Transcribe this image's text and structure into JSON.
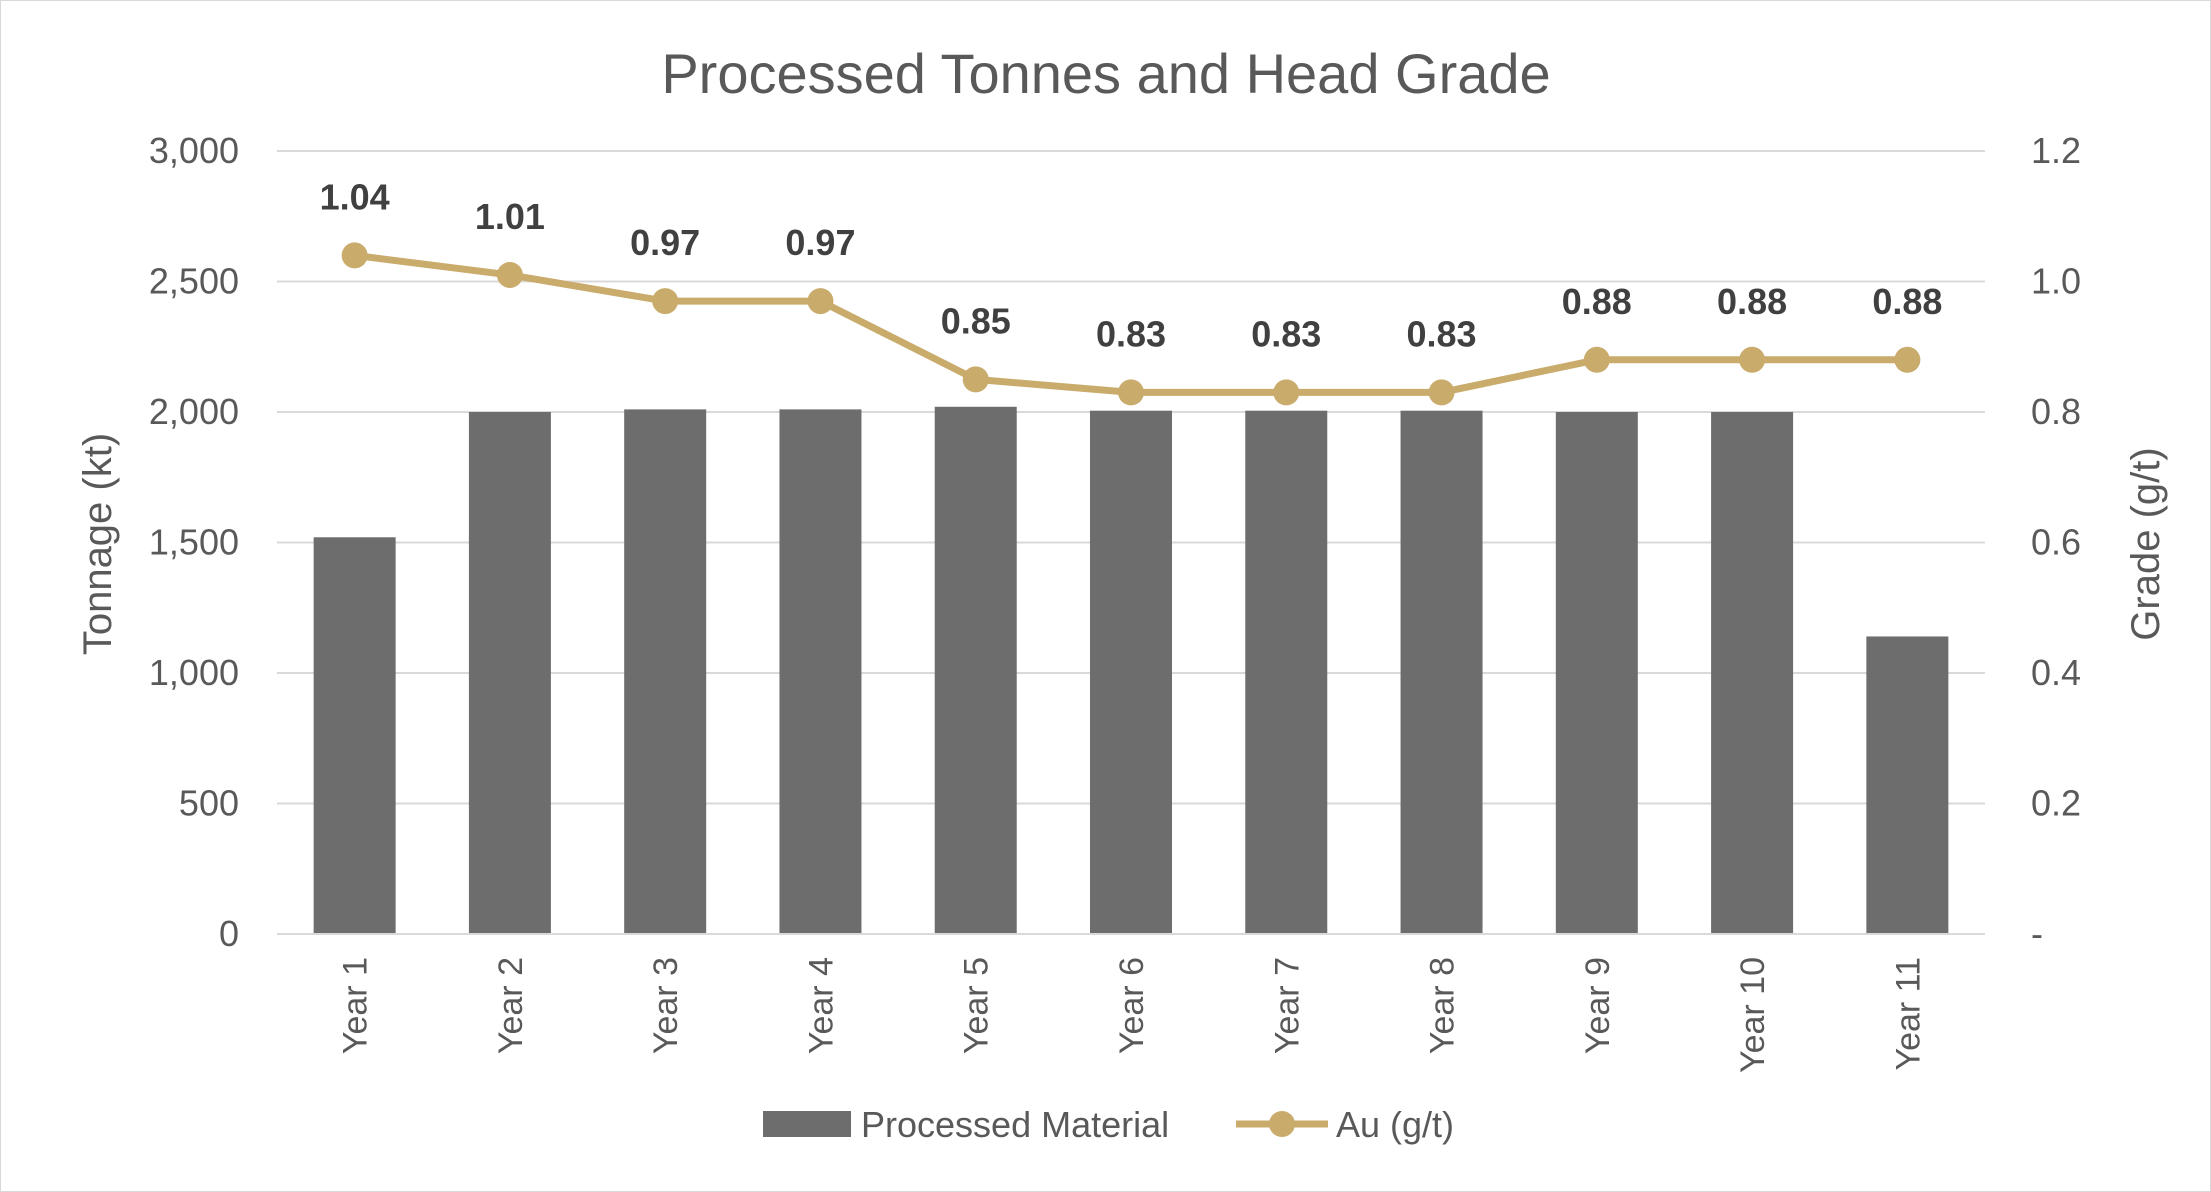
{
  "chart_data": {
    "type": "bar",
    "title": "Processed Tonnes and Head Grade",
    "categories": [
      "Year 1",
      "Year 2",
      "Year 3",
      "Year 4",
      "Year 5",
      "Year 6",
      "Year 7",
      "Year 8",
      "Year 9",
      "Year 10",
      "Year 11"
    ],
    "series": [
      {
        "name": "Processed Material",
        "type": "bar",
        "axis": "left",
        "color": "#6d6d6d",
        "values": [
          1520,
          2000,
          2010,
          2010,
          2020,
          2005,
          2005,
          2005,
          2000,
          2000,
          1140
        ]
      },
      {
        "name": "Au (g/t)",
        "type": "line",
        "axis": "right",
        "color": "#c9ab6b",
        "marker": "circle",
        "values": [
          1.04,
          1.01,
          0.97,
          0.97,
          0.85,
          0.83,
          0.83,
          0.83,
          0.88,
          0.88,
          0.88
        ],
        "data_labels": [
          "1.04",
          "1.01",
          "0.97",
          "0.97",
          "0.85",
          "0.83",
          "0.83",
          "0.83",
          "0.88",
          "0.88",
          "0.88"
        ]
      }
    ],
    "ylabel": "Tonnage (kt)",
    "y2label": "Grade (g/t)",
    "ylim": [
      0,
      3000
    ],
    "y2lim": [
      0,
      1.2
    ],
    "yticks": [
      "0",
      "500",
      "1,000",
      "1,500",
      "2,000",
      "2,500",
      "3,000"
    ],
    "y2ticks": [
      "-",
      "0.2",
      "0.4",
      "0.6",
      "0.8",
      "1.0",
      "1.2"
    ],
    "grid": true,
    "legend_position": "bottom",
    "colors": {
      "gridline": "#d9d9d9",
      "text": "#595959",
      "data_label": "#404040"
    }
  }
}
